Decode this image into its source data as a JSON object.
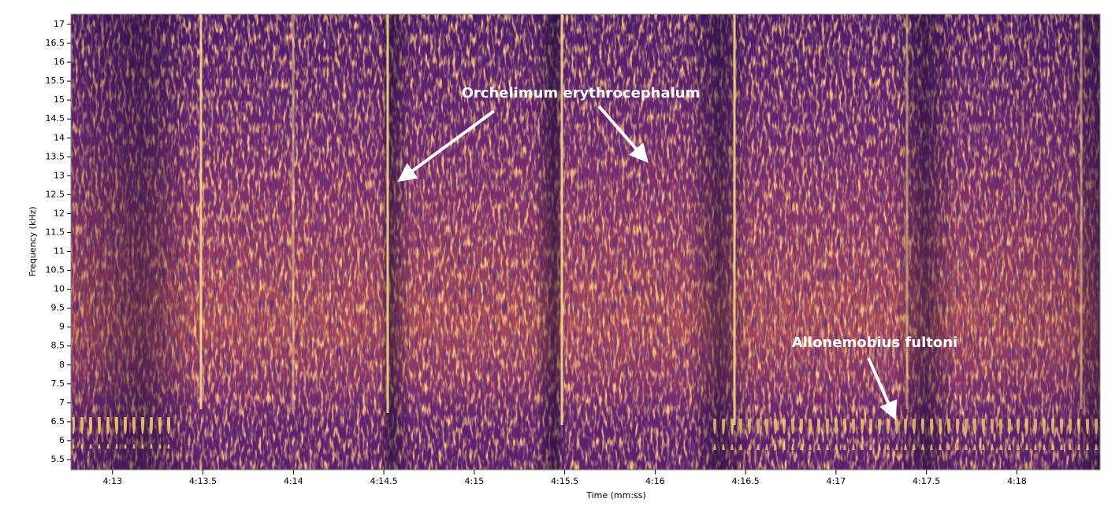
{
  "chart_data": {
    "type": "spectrogram",
    "xlabel": "Time (mm:ss)",
    "ylabel": "Frequency (kHz)",
    "xlim": [
      252.77,
      258.46
    ],
    "xticks": [
      {
        "value": 253,
        "label": "4:13"
      },
      {
        "value": 253.5,
        "label": "4:13.5"
      },
      {
        "value": 254,
        "label": "4:14"
      },
      {
        "value": 254.5,
        "label": "4:14.5"
      },
      {
        "value": 255,
        "label": "4:15"
      },
      {
        "value": 255.5,
        "label": "4:15.5"
      },
      {
        "value": 256,
        "label": "4:16"
      },
      {
        "value": 256.5,
        "label": "4:16.5"
      },
      {
        "value": 257,
        "label": "4:17"
      },
      {
        "value": 257.5,
        "label": "4:17.5"
      },
      {
        "value": 258,
        "label": "4:18"
      }
    ],
    "ylim": [
      5.23,
      17.27
    ],
    "yticks": [
      5.5,
      6,
      6.5,
      7,
      7.5,
      8,
      8.5,
      9,
      9.5,
      10,
      10.5,
      11,
      11.5,
      12,
      12.5,
      13,
      13.5,
      14,
      14.5,
      15,
      15.5,
      16,
      16.5,
      17
    ],
    "annotations": [
      "Orchelimum erythrocephalum",
      "Allonemobius fultoni"
    ]
  }
}
